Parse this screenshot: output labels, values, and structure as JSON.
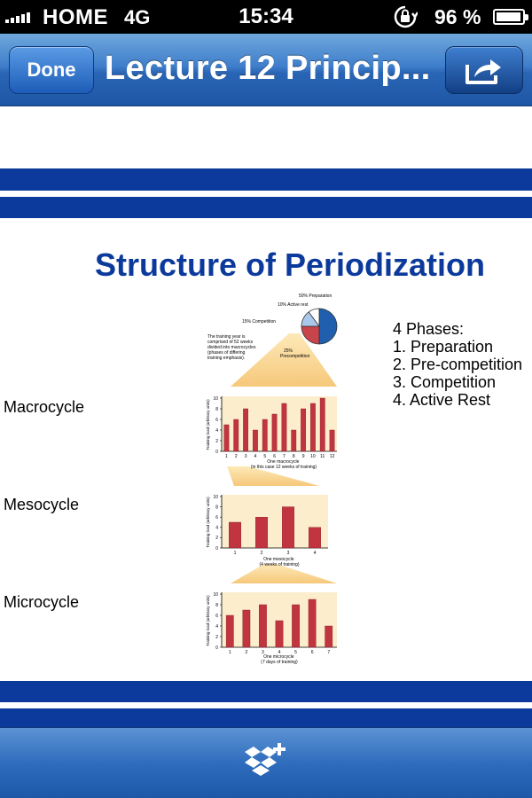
{
  "status_bar": {
    "carrier": "HOME",
    "network": "4G",
    "time": "15:34",
    "battery": "96 %",
    "battery_level": 0.96,
    "icons": [
      "signal-icon",
      "lock-rotation-icon",
      "battery-icon"
    ]
  },
  "nav": {
    "done_label": "Done",
    "title": "Lecture 12 Princip...",
    "share_icon": "share-icon"
  },
  "slide": {
    "title": "Structure of Periodization",
    "labels": {
      "macro": "Macrocycle",
      "meso": "Mesocycle",
      "micro": "Microcycle"
    },
    "phases_heading": "4 Phases:",
    "phases": [
      "1. Preparation",
      "2. Pre-competition",
      "3. Competition",
      "4. Active Rest"
    ],
    "band_color": "#0b3a9c"
  },
  "figure": {
    "y_axis_label": "Training load (arbitrary units)",
    "pie_labels": {
      "preparation": "50% Preparation",
      "active_rest": "10% Active rest",
      "competition": "15% Competition",
      "precompetition": "25% Precompetition"
    },
    "note": "The training year is comprised of 52 weeks divided into macrocycles (phases of differing training emphasis).",
    "macro_caption": "One macrocycle (in this case 12 weeks of training)",
    "meso_caption": "One mesocycle (4 weeks of training)",
    "micro_caption": "One microcycle (7 days of training)"
  },
  "chart_data": [
    {
      "type": "pie",
      "categories": [
        "Preparation",
        "Precompetition",
        "Competition",
        "Active rest"
      ],
      "values": [
        50,
        25,
        15,
        10
      ],
      "colors": [
        "#1f5fae",
        "#c8444b",
        "#a9c8ea",
        "#ffffff"
      ]
    },
    {
      "type": "bar",
      "categories": [
        "1",
        "2",
        "3",
        "4",
        "5",
        "6",
        "7",
        "8",
        "9",
        "10",
        "11",
        "12"
      ],
      "values": [
        5,
        6,
        8,
        4,
        6,
        7,
        9,
        4,
        8,
        9,
        10,
        4
      ],
      "ylim": [
        0,
        10
      ],
      "xlabel": "One macrocycle (in this case 12 weeks of training)",
      "ylabel": "Training load (arbitrary units)"
    },
    {
      "type": "bar",
      "categories": [
        "1",
        "2",
        "3",
        "4"
      ],
      "values": [
        5,
        6,
        8,
        4
      ],
      "ylim": [
        0,
        10
      ],
      "xlabel": "One mesocycle (4 weeks of training)",
      "ylabel": "Training load (arbitrary units)"
    },
    {
      "type": "bar",
      "categories": [
        "1",
        "2",
        "3",
        "4",
        "5",
        "6",
        "7"
      ],
      "values": [
        6,
        7,
        8,
        5,
        8,
        9,
        4
      ],
      "ylim": [
        0,
        10
      ],
      "xlabel": "One microcycle (7 days of training)",
      "ylabel": "Training load (arbitrary units)"
    }
  ],
  "toolbar": {
    "dropbox_icon": "dropbox-add-icon"
  }
}
